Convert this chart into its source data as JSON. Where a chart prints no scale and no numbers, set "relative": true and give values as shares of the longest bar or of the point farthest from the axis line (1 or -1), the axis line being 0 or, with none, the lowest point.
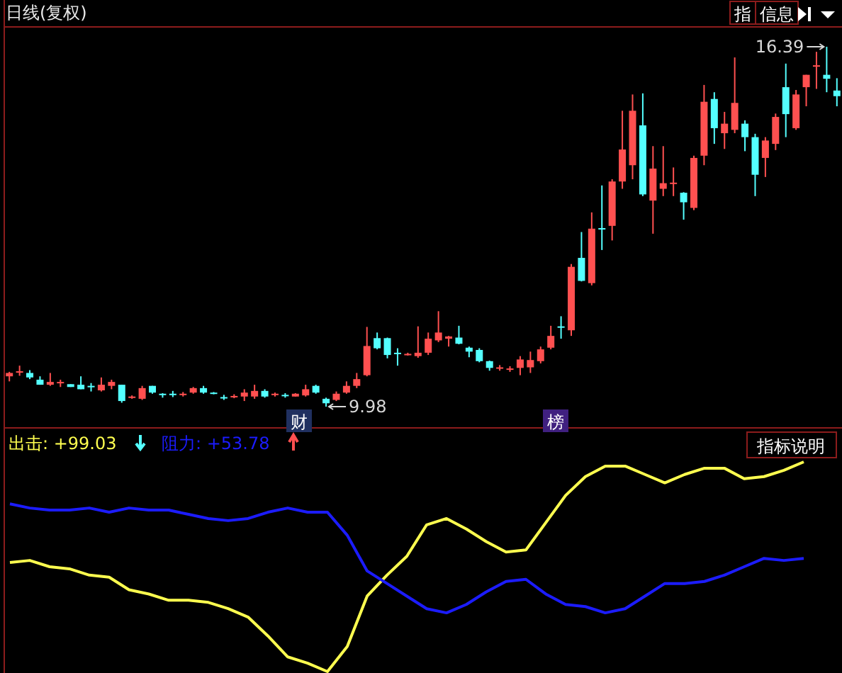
{
  "chart_data": [
    {
      "type": "candlestick",
      "title": "日线(复权)",
      "categories": [
        null,
        null,
        null,
        null,
        null,
        null,
        null,
        null,
        null,
        null,
        null,
        null,
        null,
        null,
        null,
        null,
        null,
        null,
        null,
        null,
        null,
        null,
        null,
        null,
        null,
        null,
        null,
        null,
        null,
        null,
        null,
        null,
        null,
        null,
        null,
        null,
        null,
        null,
        null,
        null,
        null,
        null,
        null,
        null,
        null,
        null,
        null,
        null,
        null,
        null,
        null,
        null,
        null,
        null,
        null,
        null,
        null,
        null,
        null,
        null,
        null,
        null,
        null,
        null,
        null,
        null,
        null,
        null,
        null,
        null,
        null,
        null,
        null,
        null,
        null,
        null,
        null,
        null,
        null,
        null,
        null,
        null
      ],
      "ohlc": [
        [
          10.52,
          10.6,
          10.43,
          10.58
        ],
        [
          10.6,
          10.71,
          10.53,
          10.61
        ],
        [
          10.58,
          10.63,
          10.47,
          10.5
        ],
        [
          10.46,
          10.52,
          10.37,
          10.37
        ],
        [
          10.37,
          10.58,
          10.35,
          10.42
        ],
        [
          10.4,
          10.46,
          10.33,
          10.42
        ],
        [
          10.38,
          10.38,
          10.33,
          10.33
        ],
        [
          10.37,
          10.52,
          10.29,
          10.29
        ],
        [
          10.35,
          10.4,
          10.25,
          10.34
        ],
        [
          10.27,
          10.5,
          10.25,
          10.37
        ],
        [
          10.35,
          10.46,
          10.29,
          10.42
        ],
        [
          10.37,
          10.37,
          10.05,
          10.08
        ],
        [
          10.14,
          10.18,
          10.12,
          10.16
        ],
        [
          10.12,
          10.35,
          10.1,
          10.31
        ],
        [
          10.35,
          10.35,
          10.21,
          10.23
        ],
        [
          10.21,
          10.22,
          10.14,
          10.2
        ],
        [
          10.21,
          10.26,
          10.15,
          10.2
        ],
        [
          10.2,
          10.24,
          10.16,
          10.21
        ],
        [
          10.23,
          10.33,
          10.21,
          10.31
        ],
        [
          10.31,
          10.35,
          10.21,
          10.23
        ],
        [
          10.23,
          10.24,
          10.2,
          10.22
        ],
        [
          10.15,
          10.19,
          10.1,
          10.14
        ],
        [
          10.16,
          10.2,
          10.13,
          10.17
        ],
        [
          10.16,
          10.29,
          10.08,
          10.23
        ],
        [
          10.16,
          10.37,
          10.12,
          10.26
        ],
        [
          10.26,
          10.29,
          10.14,
          10.16
        ],
        [
          10.2,
          10.23,
          10.16,
          10.21
        ],
        [
          10.19,
          10.22,
          10.14,
          10.18
        ],
        [
          10.16,
          10.22,
          10.16,
          10.21
        ],
        [
          10.18,
          10.37,
          10.16,
          10.29
        ],
        [
          10.35,
          10.37,
          10.21,
          10.23
        ],
        [
          10.12,
          10.14,
          9.98,
          10.04
        ],
        [
          10.1,
          10.25,
          10.08,
          10.21
        ],
        [
          10.23,
          10.43,
          10.21,
          10.35
        ],
        [
          10.35,
          10.58,
          10.31,
          10.47
        ],
        [
          10.54,
          11.4,
          10.52,
          11.06
        ],
        [
          11.2,
          11.3,
          11.0,
          11.02
        ],
        [
          11.2,
          11.21,
          10.84,
          10.9
        ],
        [
          10.94,
          11.02,
          10.71,
          10.93
        ],
        [
          10.91,
          10.94,
          10.89,
          10.92
        ],
        [
          10.88,
          11.41,
          10.85,
          10.94
        ],
        [
          10.94,
          11.3,
          10.9,
          11.19
        ],
        [
          11.16,
          11.68,
          11.13,
          11.3
        ],
        [
          11.19,
          11.24,
          11.05,
          11.23
        ],
        [
          11.21,
          11.42,
          11.09,
          11.1
        ],
        [
          11.03,
          11.05,
          10.86,
          10.96
        ],
        [
          10.99,
          11.02,
          10.77,
          10.79
        ],
        [
          10.79,
          10.8,
          10.62,
          10.67
        ],
        [
          10.67,
          10.72,
          10.62,
          10.68
        ],
        [
          10.65,
          10.7,
          10.6,
          10.66
        ],
        [
          10.67,
          10.88,
          10.54,
          10.82
        ],
        [
          10.68,
          10.96,
          10.58,
          10.81
        ],
        [
          10.79,
          11.05,
          10.75,
          11.0
        ],
        [
          11.03,
          11.42,
          11.0,
          11.24
        ],
        [
          11.41,
          11.59,
          11.19,
          11.39
        ],
        [
          11.34,
          12.52,
          11.24,
          12.47
        ],
        [
          12.63,
          13.09,
          12.21,
          12.22
        ],
        [
          12.18,
          13.44,
          12.14,
          13.15
        ],
        [
          13.16,
          13.92,
          12.77,
          13.14
        ],
        [
          13.2,
          14.03,
          12.94,
          13.99
        ],
        [
          13.99,
          15.25,
          13.86,
          14.56
        ],
        [
          14.28,
          15.54,
          14.03,
          15.25
        ],
        [
          14.99,
          15.56,
          13.73,
          13.76
        ],
        [
          13.65,
          14.62,
          13.06,
          14.22
        ],
        [
          13.86,
          14.62,
          13.73,
          13.96
        ],
        [
          13.97,
          14.24,
          13.73,
          13.97
        ],
        [
          13.79,
          13.8,
          13.31,
          13.62
        ],
        [
          13.52,
          14.45,
          13.48,
          14.41
        ],
        [
          14.45,
          15.71,
          14.28,
          15.41
        ],
        [
          15.46,
          15.58,
          14.66,
          14.94
        ],
        [
          14.85,
          15.23,
          14.57,
          15.02
        ],
        [
          14.91,
          16.2,
          14.85,
          15.39
        ],
        [
          15.02,
          15.08,
          14.53,
          14.78
        ],
        [
          14.78,
          14.84,
          13.73,
          14.11
        ],
        [
          14.41,
          14.78,
          14.07,
          14.72
        ],
        [
          14.66,
          15.2,
          14.55,
          15.14
        ],
        [
          15.67,
          16.09,
          14.78,
          15.19
        ],
        [
          14.94,
          15.62,
          14.91,
          15.54
        ],
        [
          15.67,
          15.89,
          15.33,
          15.89
        ],
        [
          16.04,
          16.3,
          15.64,
          16.06
        ],
        [
          15.89,
          16.39,
          15.58,
          15.82
        ],
        [
          15.61,
          15.83,
          15.33,
          15.51
        ]
      ],
      "annotations": [
        "16.39",
        "9.98",
        "财",
        "榜",
        "指",
        "信息"
      ]
    },
    {
      "type": "line",
      "relative": true,
      "categories": [
        null,
        null,
        null,
        null,
        null,
        null,
        null,
        null,
        null,
        null,
        null,
        null,
        null,
        null,
        null,
        null,
        null,
        null,
        null,
        null,
        null,
        null,
        null,
        null,
        null,
        null,
        null,
        null,
        null,
        null,
        null,
        null,
        null,
        null,
        null,
        null,
        null,
        null,
        null,
        null,
        null
      ],
      "series": [
        {
          "color": "#ffff4f",
          "values": [
            0.52,
            0.53,
            0.5,
            0.49,
            0.46,
            0.45,
            0.39,
            0.37,
            0.34,
            0.34,
            0.33,
            0.3,
            0.26,
            0.17,
            0.07,
            0.04,
            0,
            0.12,
            0.36,
            0.46,
            0.55,
            0.7,
            0.73,
            0.68,
            0.62,
            0.57,
            0.58,
            0.71,
            0.84,
            0.93,
            0.98,
            0.98,
            0.94,
            0.9,
            0.94,
            0.97,
            0.97,
            0.92,
            0.93,
            0.96,
            1
          ]
        },
        {
          "color": "#1c1cff",
          "values": [
            0.8,
            0.78,
            0.77,
            0.77,
            0.78,
            0.76,
            0.78,
            0.77,
            0.77,
            0.75,
            0.73,
            0.72,
            0.73,
            0.76,
            0.78,
            0.76,
            0.76,
            0.65,
            0.48,
            0.42,
            0.36,
            0.3,
            0.28,
            0.32,
            0.38,
            0.43,
            0.44,
            0.37,
            0.32,
            0.31,
            0.28,
            0.3,
            0.36,
            0.42,
            0.42,
            0.43,
            0.46,
            0.5,
            0.54,
            0.53,
            0.54
          ]
        }
      ],
      "annotations": [
        "出击: +99.03",
        "阻力: +53.78",
        "指标说明"
      ]
    }
  ]
}
